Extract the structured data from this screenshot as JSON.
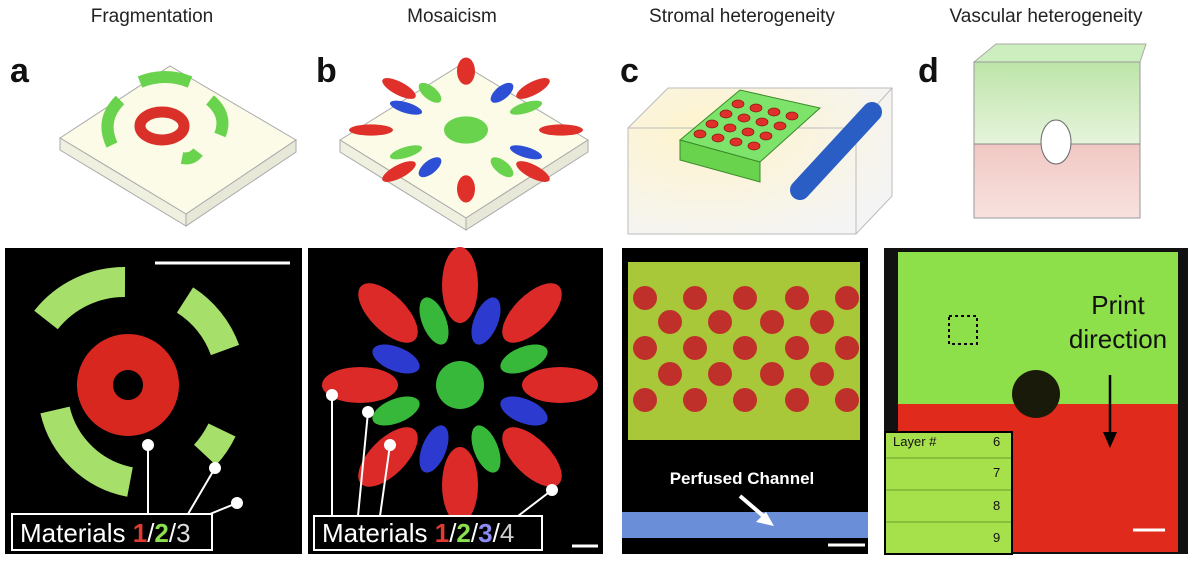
{
  "panels": [
    {
      "letter": "a",
      "title": "Fragmentation",
      "legend": {
        "label": "Materials",
        "separator": "/",
        "items": [
          "1",
          "2",
          "3"
        ]
      }
    },
    {
      "letter": "b",
      "title": "Mosaicism",
      "legend": {
        "label": "Materials",
        "separator": "/",
        "items": [
          "1",
          "2",
          "3",
          "4"
        ]
      }
    },
    {
      "letter": "c",
      "title": "Stromal heterogeneity",
      "annotation": "Perfused Channel"
    },
    {
      "letter": "d",
      "title": "Vascular heterogeneity",
      "annotation": [
        "Print",
        "direction"
      ],
      "inset": {
        "label": "Layer #",
        "layers": [
          "6",
          "7",
          "8",
          "9"
        ]
      }
    }
  ]
}
